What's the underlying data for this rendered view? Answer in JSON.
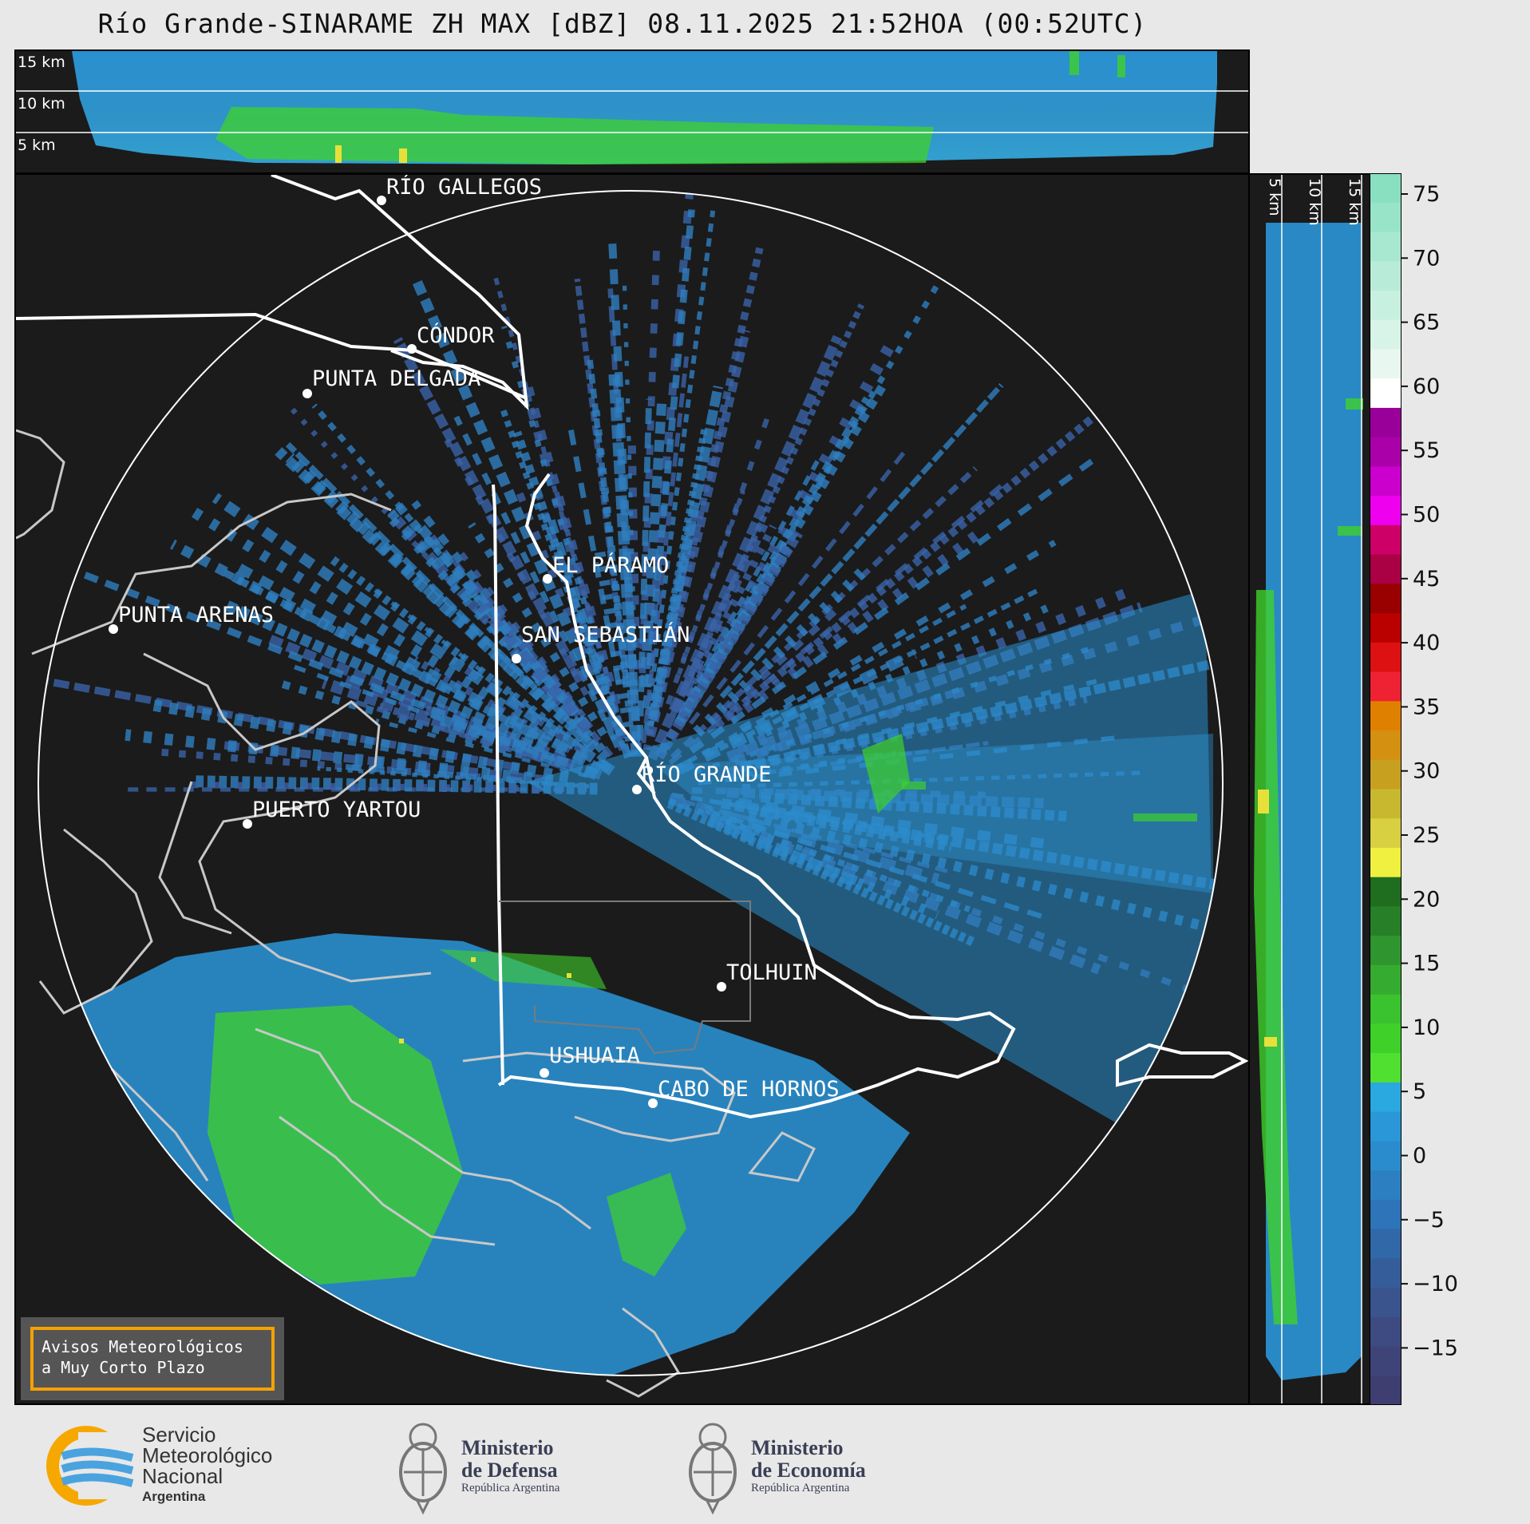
{
  "title": "Río Grande-SINARAME ZH MAX [dBZ] 08.11.2025 21:52HOA (00:52UTC)",
  "top_panel": {
    "height_labels": [
      "15 km",
      "10 km",
      "5 km"
    ]
  },
  "side_panel": {
    "height_labels": [
      "5 km",
      "10 km",
      "15 km"
    ]
  },
  "cities": [
    {
      "name": "RÍO GALLEGOS"
    },
    {
      "name": "CÓNDOR"
    },
    {
      "name": "PUNTA DELGADA"
    },
    {
      "name": "EL PÁRAMO"
    },
    {
      "name": "PUNTA ARENAS"
    },
    {
      "name": "SAN SEBASTIÁN"
    },
    {
      "name": "RÍO GRANDE"
    },
    {
      "name": "PUERTO YARTOU"
    },
    {
      "name": "TOLHUIN"
    },
    {
      "name": "USHUAIA"
    },
    {
      "name": "CABO DE HORNOS"
    }
  ],
  "colorbar": {
    "unit": "dBZ",
    "ticks": [
      "75",
      "70",
      "65",
      "60",
      "55",
      "50",
      "45",
      "40",
      "35",
      "30",
      "25",
      "20",
      "15",
      "10",
      "5",
      "0",
      "−5",
      "−10",
      "−15"
    ],
    "colors": {
      "bg": "#1b1b1b",
      "coast": "#c8c8c8",
      "border": "#ffffff",
      "refl_low": "#3d5fa0",
      "refl_mid": "#2a8fcf",
      "refl_green": "#3fd12a",
      "refl_yellow": "#e8e03a"
    }
  },
  "notice": {
    "line1": "Avisos Meteorológicos",
    "line2": "a Muy Corto Plazo"
  },
  "logos": {
    "smn": {
      "line1": "Servicio",
      "line2": "Meteorológico",
      "line3": "Nacional",
      "sub": "Argentina"
    },
    "defensa": {
      "line1": "Ministerio",
      "line2": "de Defensa",
      "sub": "República Argentina"
    },
    "economia": {
      "line1": "Ministerio",
      "line2": "de Economía",
      "sub": "República Argentina"
    }
  }
}
